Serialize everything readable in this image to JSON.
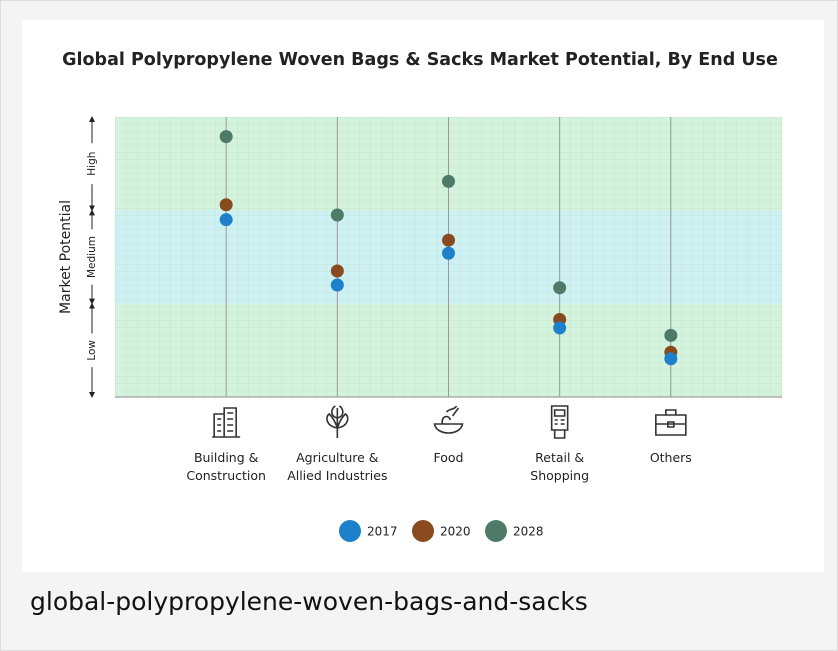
{
  "chart_data": {
    "type": "scatter",
    "title": "Global Polypropylene Woven Bags & Sacks Market Potential, By End Use",
    "y_label": "Market Potential",
    "categories": [
      "Building &\nConstruction",
      "Agriculture &\nAllied Industries",
      "Food",
      "Retail &\nShopping",
      "Others"
    ],
    "ylim": [
      0,
      3
    ],
    "bands": [
      {
        "label": "Low",
        "range": [
          0,
          1
        ],
        "color": "#d3f3dc"
      },
      {
        "label": "Medium",
        "range": [
          1,
          2
        ],
        "color": "#cdf1f3"
      },
      {
        "label": "High",
        "range": [
          2,
          3
        ],
        "color": "#d3f3dc"
      }
    ],
    "series": [
      {
        "name": "2017",
        "color": "#1e7fca",
        "values": [
          1.9,
          1.2,
          1.54,
          0.74,
          0.41
        ]
      },
      {
        "name": "2020",
        "color": "#8a4a1f",
        "values": [
          2.06,
          1.35,
          1.68,
          0.83,
          0.48
        ]
      },
      {
        "name": "2028",
        "color": "#4e7a68",
        "values": [
          2.79,
          1.95,
          2.31,
          1.17,
          0.66
        ]
      }
    ],
    "caption": "global-polypropylene-woven-bags-and-sacks"
  }
}
